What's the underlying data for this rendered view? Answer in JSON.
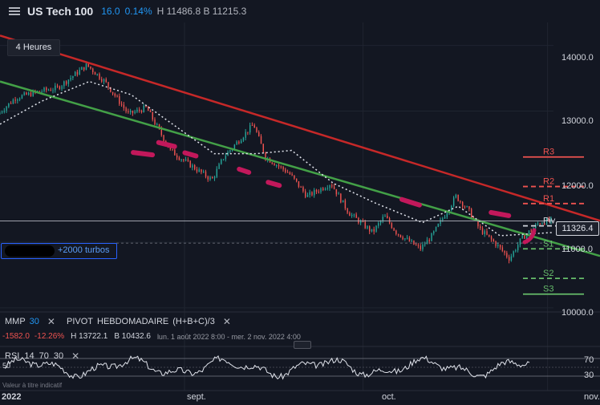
{
  "header": {
    "title": "US Tech 100",
    "change_abs": "16.0",
    "change_pct": "0.14%",
    "high_low": "H 11486.8 B 11215.3"
  },
  "timeframe_label": "4 Heures",
  "turbos_label": "+2000 turbos",
  "pivot_labels": {
    "r3": "R3",
    "r2": "R2",
    "r1": "R1",
    "piv": "Piv",
    "s1": "S1",
    "s2": "S2",
    "s3": "S3"
  },
  "last_price": "11326.4",
  "y_ticks": [
    "14000.0",
    "13000.0",
    "12000.0",
    "11000.0",
    "10000.0"
  ],
  "x_ticks": [
    "2022",
    "sept.",
    "oct.",
    "nov."
  ],
  "indicators": {
    "mmp": {
      "name": "MMP",
      "period": "30"
    },
    "pivot": {
      "name": "PIVOT",
      "type": "HEBDOMADAIRE",
      "formula": "(H+B+C)/3"
    },
    "stats": {
      "change_abs": "-1582.0",
      "change_pct": "-12.26%",
      "high": "H 13722.1",
      "low": "B 10432.6",
      "range": "lun. 1 août 2022 8:00 - mer. 2 nov. 2022 4:00"
    },
    "rsi": {
      "name": "RSI",
      "p1": "14",
      "p2": "70",
      "p3": "30",
      "levels": [
        "70",
        "30"
      ],
      "left_level": "50"
    },
    "note": "Valeur à titre indicatif"
  },
  "chart_data": {
    "type": "line",
    "title": "US Tech 100",
    "timeframe": "4 Heures",
    "x_start": "2022-08-01",
    "x_end": "2022-11-02",
    "ylim": [
      9950,
      14350
    ],
    "grid": true,
    "series_close": [
      {
        "x": "2022-08-01",
        "y": 12950
      },
      {
        "x": "2022-08-04",
        "y": 13200
      },
      {
        "x": "2022-08-08",
        "y": 13300
      },
      {
        "x": "2022-08-11",
        "y": 13350
      },
      {
        "x": "2022-08-16",
        "y": 13700
      },
      {
        "x": "2022-08-19",
        "y": 13450
      },
      {
        "x": "2022-08-23",
        "y": 12950
      },
      {
        "x": "2022-08-26",
        "y": 13050
      },
      {
        "x": "2022-08-30",
        "y": 12400
      },
      {
        "x": "2022-09-02",
        "y": 12200
      },
      {
        "x": "2022-09-06",
        "y": 11950
      },
      {
        "x": "2022-09-08",
        "y": 12300
      },
      {
        "x": "2022-09-13",
        "y": 12800
      },
      {
        "x": "2022-09-15",
        "y": 12300
      },
      {
        "x": "2022-09-19",
        "y": 12050
      },
      {
        "x": "2022-09-22",
        "y": 11700
      },
      {
        "x": "2022-09-26",
        "y": 11900
      },
      {
        "x": "2022-09-29",
        "y": 11450
      },
      {
        "x": "2022-10-03",
        "y": 11150
      },
      {
        "x": "2022-10-05",
        "y": 11400
      },
      {
        "x": "2022-10-07",
        "y": 11150
      },
      {
        "x": "2022-10-11",
        "y": 10900
      },
      {
        "x": "2022-10-13",
        "y": 11100
      },
      {
        "x": "2022-10-17",
        "y": 11700
      },
      {
        "x": "2022-10-19",
        "y": 11500
      },
      {
        "x": "2022-10-21",
        "y": 11200
      },
      {
        "x": "2022-10-24",
        "y": 10950
      },
      {
        "x": "2022-10-26",
        "y": 10750
      },
      {
        "x": "2022-10-28",
        "y": 11050
      },
      {
        "x": "2022-10-31",
        "y": 11300
      },
      {
        "x": "2022-11-02",
        "y": 11326
      }
    ],
    "ma30": [
      {
        "x": "2022-08-01",
        "y": 12800
      },
      {
        "x": "2022-08-08",
        "y": 13150
      },
      {
        "x": "2022-08-16",
        "y": 13450
      },
      {
        "x": "2022-08-23",
        "y": 13250
      },
      {
        "x": "2022-08-30",
        "y": 12800
      },
      {
        "x": "2022-09-06",
        "y": 12350
      },
      {
        "x": "2022-09-13",
        "y": 12350
      },
      {
        "x": "2022-09-19",
        "y": 12400
      },
      {
        "x": "2022-09-26",
        "y": 11900
      },
      {
        "x": "2022-10-03",
        "y": 11600
      },
      {
        "x": "2022-10-11",
        "y": 11300
      },
      {
        "x": "2022-10-17",
        "y": 11550
      },
      {
        "x": "2022-10-24",
        "y": 11100
      },
      {
        "x": "2022-11-02",
        "y": 11150
      }
    ],
    "trendline_red": [
      {
        "x": "2022-08-01",
        "y": 14150
      },
      {
        "x": "2022-11-02",
        "y": 11500
      }
    ],
    "trendline_green": [
      {
        "x": "2022-08-01",
        "y": 13450
      },
      {
        "x": "2022-11-02",
        "y": 10950
      }
    ],
    "pivots": {
      "R3": 12300,
      "R2": 11850,
      "R1": 11590,
      "Piv": 11250,
      "S1": 10900,
      "S2": 10450,
      "S3": 10210
    },
    "rsi_levels": [
      70,
      30
    ],
    "colors": {
      "up": "#26a69a",
      "down": "#ef5350",
      "red_line": "#c62828",
      "green_line": "#43a047",
      "ma": "#e0e3eb",
      "marker": "#c2185b",
      "accent": "#2962ff"
    }
  }
}
